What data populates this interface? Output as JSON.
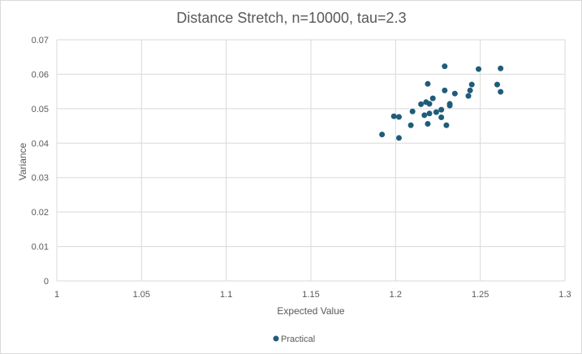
{
  "chart_data": {
    "type": "scatter",
    "title": "Distance Stretch, n=10000, tau=2.3",
    "xlabel": "Expected Value",
    "ylabel": "Variance",
    "xlim": [
      1,
      1.3
    ],
    "ylim": [
      0,
      0.07
    ],
    "x_ticks": [
      "1",
      "1.05",
      "1.1",
      "1.15",
      "1.2",
      "1.25",
      "1.3"
    ],
    "y_ticks": [
      "0",
      "0.01",
      "0.02",
      "0.03",
      "0.04",
      "0.05",
      "0.06",
      "0.07"
    ],
    "grid": true,
    "legend_position": "bottom",
    "colors": {
      "series": "#1f5c7a",
      "grid": "#d9d9d9",
      "text": "#595959"
    },
    "series": [
      {
        "name": "Practical",
        "points": [
          [
            1.192,
            0.0425
          ],
          [
            1.199,
            0.0478
          ],
          [
            1.202,
            0.0415
          ],
          [
            1.202,
            0.0476
          ],
          [
            1.209,
            0.0452
          ],
          [
            1.21,
            0.0492
          ],
          [
            1.215,
            0.0513
          ],
          [
            1.217,
            0.0481
          ],
          [
            1.218,
            0.0519
          ],
          [
            1.219,
            0.0572
          ],
          [
            1.219,
            0.0456
          ],
          [
            1.22,
            0.0514
          ],
          [
            1.22,
            0.0486
          ],
          [
            1.222,
            0.053
          ],
          [
            1.224,
            0.049
          ],
          [
            1.227,
            0.0497
          ],
          [
            1.227,
            0.0475
          ],
          [
            1.229,
            0.0623
          ],
          [
            1.229,
            0.0553
          ],
          [
            1.23,
            0.0452
          ],
          [
            1.232,
            0.0509
          ],
          [
            1.232,
            0.0514
          ],
          [
            1.235,
            0.0544
          ],
          [
            1.243,
            0.0537
          ],
          [
            1.244,
            0.0553
          ],
          [
            1.245,
            0.057
          ],
          [
            1.249,
            0.0615
          ],
          [
            1.26,
            0.057
          ],
          [
            1.262,
            0.0617
          ],
          [
            1.262,
            0.0549
          ]
        ]
      }
    ]
  }
}
